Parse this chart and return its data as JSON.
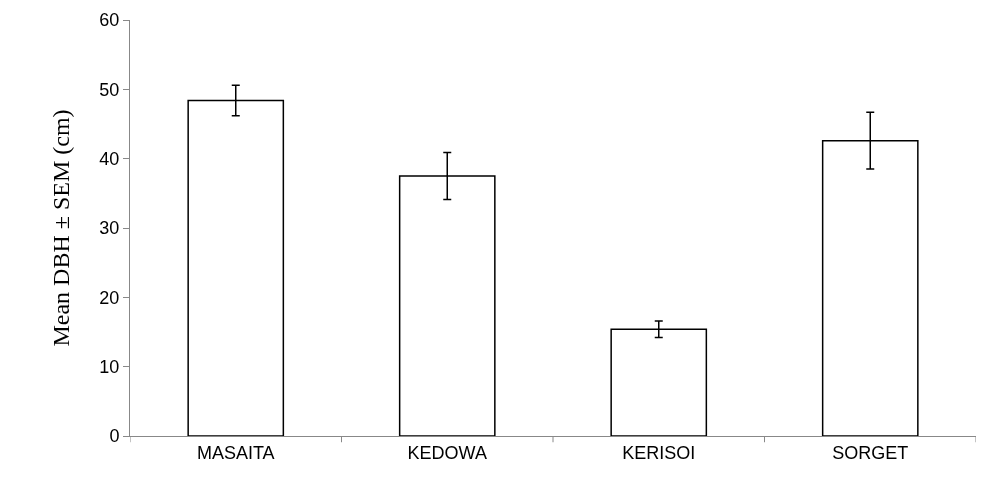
{
  "chart_data": {
    "type": "bar",
    "ylabel": "Mean DBH ± SEM (cm)",
    "categories": [
      "MASAITA",
      "KEDOWA",
      "KERISOI",
      "SORGET"
    ],
    "values": [
      48.4,
      37.5,
      15.4,
      42.6
    ],
    "errors": [
      2.2,
      3.4,
      1.2,
      4.1
    ],
    "color": "#ffffff",
    "ylim": [
      0,
      60
    ],
    "yticks": [
      0,
      10,
      20,
      30,
      40,
      50,
      60
    ],
    "grid": false
  }
}
